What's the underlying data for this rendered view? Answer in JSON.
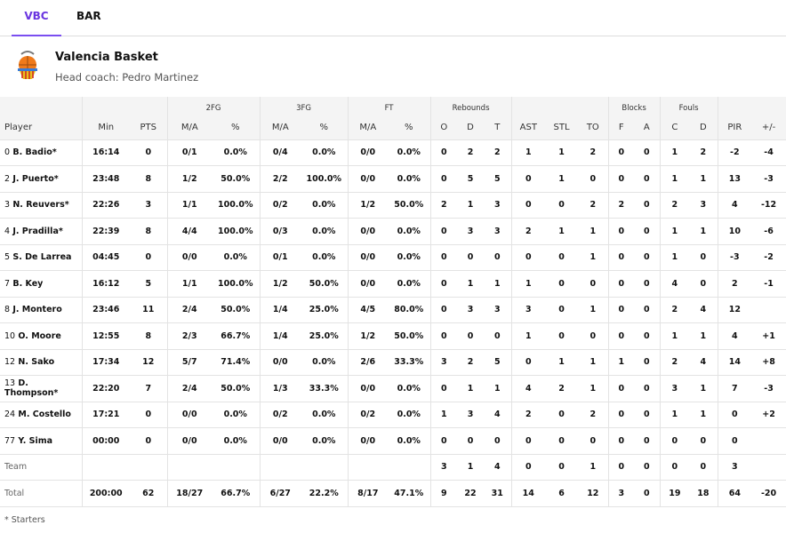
{
  "tabs": [
    "VBC",
    "BAR"
  ],
  "team": {
    "name": "Valencia Basket",
    "coach": "Head coach: Pedro Martinez"
  },
  "groups": {
    "fg2": "2FG",
    "fg3": "3FG",
    "ft": "FT",
    "reb": "Rebounds",
    "blk": "Blocks",
    "fouls": "Fouls"
  },
  "columns": [
    "Player",
    "Min",
    "PTS",
    "M/A",
    "%",
    "M/A",
    "%",
    "M/A",
    "%",
    "O",
    "D",
    "T",
    "AST",
    "STL",
    "TO",
    "F",
    "A",
    "C",
    "D",
    "PIR",
    "+/-"
  ],
  "players": [
    {
      "num": "0",
      "name": "B. Badio*",
      "stats": [
        "16:14",
        "0",
        "0/1",
        "0.0%",
        "0/4",
        "0.0%",
        "0/0",
        "0.0%",
        "0",
        "2",
        "2",
        "1",
        "1",
        "2",
        "0",
        "0",
        "1",
        "2",
        "-2",
        "-4"
      ]
    },
    {
      "num": "2",
      "name": "J. Puerto*",
      "stats": [
        "23:48",
        "8",
        "1/2",
        "50.0%",
        "2/2",
        "100.0%",
        "0/0",
        "0.0%",
        "0",
        "5",
        "5",
        "0",
        "1",
        "0",
        "0",
        "0",
        "1",
        "1",
        "13",
        "-3"
      ]
    },
    {
      "num": "3",
      "name": "N. Reuvers*",
      "stats": [
        "22:26",
        "3",
        "1/1",
        "100.0%",
        "0/2",
        "0.0%",
        "1/2",
        "50.0%",
        "2",
        "1",
        "3",
        "0",
        "0",
        "2",
        "2",
        "0",
        "2",
        "3",
        "4",
        "-12"
      ]
    },
    {
      "num": "4",
      "name": "J. Pradilla*",
      "stats": [
        "22:39",
        "8",
        "4/4",
        "100.0%",
        "0/3",
        "0.0%",
        "0/0",
        "0.0%",
        "0",
        "3",
        "3",
        "2",
        "1",
        "1",
        "0",
        "0",
        "1",
        "1",
        "10",
        "-6"
      ]
    },
    {
      "num": "5",
      "name": "S. De Larrea",
      "stats": [
        "04:45",
        "0",
        "0/0",
        "0.0%",
        "0/1",
        "0.0%",
        "0/0",
        "0.0%",
        "0",
        "0",
        "0",
        "0",
        "0",
        "1",
        "0",
        "0",
        "1",
        "0",
        "-3",
        "-2"
      ]
    },
    {
      "num": "7",
      "name": "B. Key",
      "stats": [
        "16:12",
        "5",
        "1/1",
        "100.0%",
        "1/2",
        "50.0%",
        "0/0",
        "0.0%",
        "0",
        "1",
        "1",
        "1",
        "0",
        "0",
        "0",
        "0",
        "4",
        "0",
        "2",
        "-1"
      ]
    },
    {
      "num": "8",
      "name": "J. Montero",
      "stats": [
        "23:46",
        "11",
        "2/4",
        "50.0%",
        "1/4",
        "25.0%",
        "4/5",
        "80.0%",
        "0",
        "3",
        "3",
        "3",
        "0",
        "1",
        "0",
        "0",
        "2",
        "4",
        "12",
        ""
      ]
    },
    {
      "num": "10",
      "name": "O. Moore",
      "stats": [
        "12:55",
        "8",
        "2/3",
        "66.7%",
        "1/4",
        "25.0%",
        "1/2",
        "50.0%",
        "0",
        "0",
        "0",
        "1",
        "0",
        "0",
        "0",
        "0",
        "1",
        "1",
        "4",
        "+1"
      ]
    },
    {
      "num": "12",
      "name": "N. Sako",
      "stats": [
        "17:34",
        "12",
        "5/7",
        "71.4%",
        "0/0",
        "0.0%",
        "2/6",
        "33.3%",
        "3",
        "2",
        "5",
        "0",
        "1",
        "1",
        "1",
        "0",
        "2",
        "4",
        "14",
        "+8"
      ]
    },
    {
      "num": "13",
      "name": "D. Thompson*",
      "stats": [
        "22:20",
        "7",
        "2/4",
        "50.0%",
        "1/3",
        "33.3%",
        "0/0",
        "0.0%",
        "0",
        "1",
        "1",
        "4",
        "2",
        "1",
        "0",
        "0",
        "3",
        "1",
        "7",
        "-3"
      ]
    },
    {
      "num": "24",
      "name": "M. Costello",
      "stats": [
        "17:21",
        "0",
        "0/0",
        "0.0%",
        "0/2",
        "0.0%",
        "0/2",
        "0.0%",
        "1",
        "3",
        "4",
        "2",
        "0",
        "2",
        "0",
        "0",
        "1",
        "1",
        "0",
        "+2"
      ]
    },
    {
      "num": "77",
      "name": "Y. Sima",
      "stats": [
        "00:00",
        "0",
        "0/0",
        "0.0%",
        "0/0",
        "0.0%",
        "0/0",
        "0.0%",
        "0",
        "0",
        "0",
        "0",
        "0",
        "0",
        "0",
        "0",
        "0",
        "0",
        "0",
        ""
      ]
    }
  ],
  "team_row": {
    "label": "Team",
    "stats": [
      "",
      "",
      "",
      "",
      "",
      "",
      "",
      "",
      "3",
      "1",
      "4",
      "0",
      "0",
      "1",
      "0",
      "0",
      "0",
      "0",
      "3",
      ""
    ]
  },
  "total_row": {
    "label": "Total",
    "stats": [
      "200:00",
      "62",
      "18/27",
      "66.7%",
      "6/27",
      "22.2%",
      "8/17",
      "47.1%",
      "9",
      "22",
      "31",
      "14",
      "6",
      "12",
      "3",
      "0",
      "19",
      "18",
      "64",
      "-20"
    ]
  },
  "footnote": "* Starters"
}
